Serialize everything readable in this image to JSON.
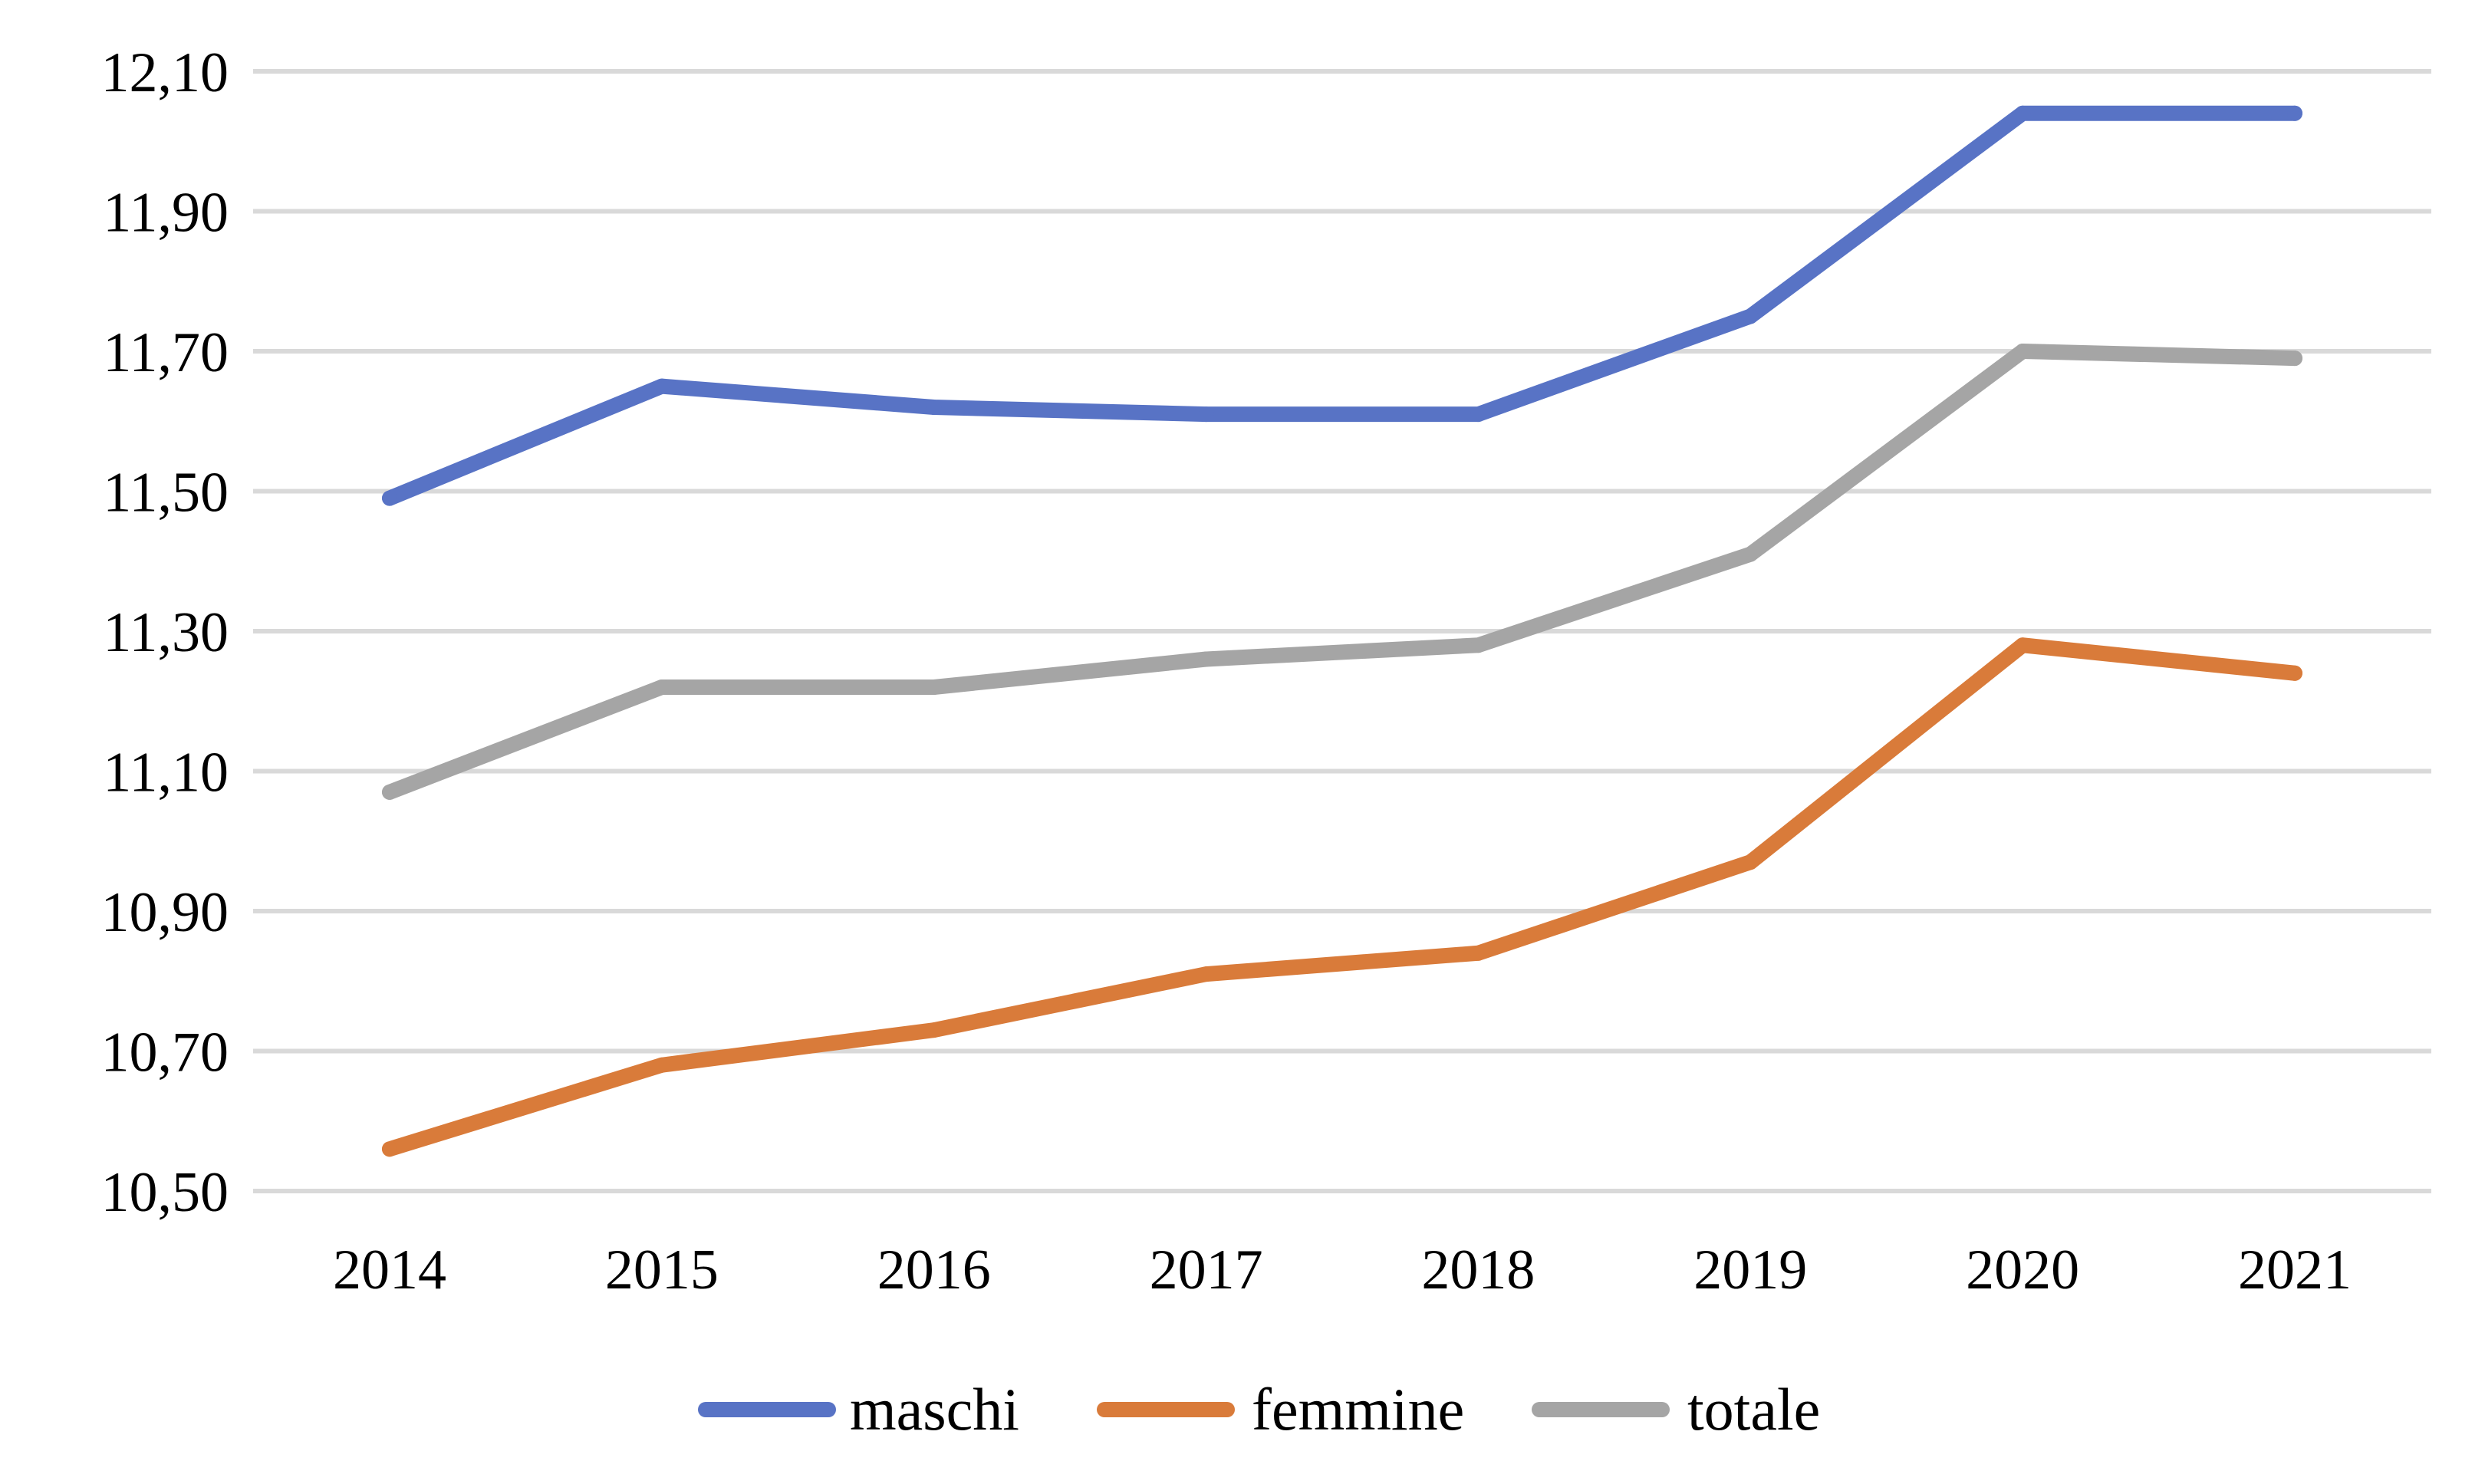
{
  "chart_data": {
    "type": "line",
    "title": "",
    "xlabel": "",
    "ylabel": "",
    "categories": [
      "2014",
      "2015",
      "2016",
      "2017",
      "2018",
      "2019",
      "2020",
      "2021"
    ],
    "ylim": [
      10.5,
      12.1
    ],
    "y_ticks": [
      10.5,
      10.7,
      10.9,
      11.1,
      11.3,
      11.5,
      11.7,
      11.9,
      12.1
    ],
    "y_tick_labels": [
      "10,50",
      "10,70",
      "10,90",
      "11,10",
      "11,30",
      "11,50",
      "11,70",
      "11,90",
      "12,10"
    ],
    "grid": true,
    "legend_position": "bottom",
    "series": [
      {
        "name": "maschi",
        "color": "#5873c5",
        "values": [
          11.49,
          11.65,
          11.62,
          11.61,
          11.61,
          11.75,
          12.04,
          12.04
        ]
      },
      {
        "name": "femmine",
        "color": "#d97b3a",
        "values": [
          10.56,
          10.68,
          10.73,
          10.81,
          10.84,
          10.97,
          11.28,
          11.24
        ]
      },
      {
        "name": "totale",
        "color": "#a5a5a5",
        "values": [
          11.07,
          11.22,
          11.22,
          11.26,
          11.28,
          11.41,
          11.7,
          11.69
        ]
      }
    ]
  }
}
